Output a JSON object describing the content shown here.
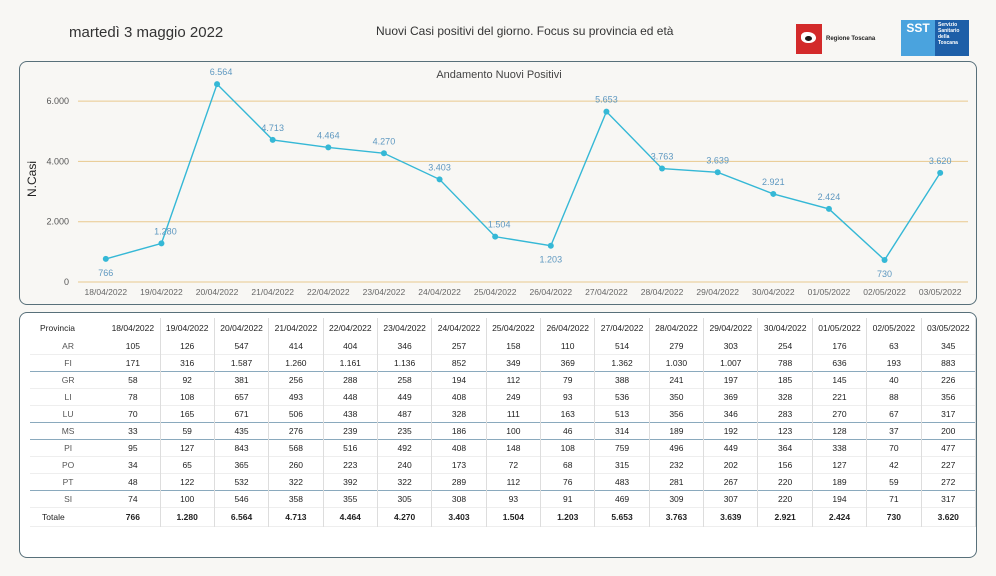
{
  "header": {
    "date": "martedì 3 maggio 2022",
    "subtitle": "Nuovi Casi positivi del giorno. Focus su provincia ed età",
    "logo_regione": "Regione Toscana",
    "logo_sst_short": "SST",
    "logo_sst_text": "Servizio Sanitario della Toscana"
  },
  "colors": {
    "line": "#35b8d6",
    "grid": "#e9c98e",
    "label": "#5e98c0"
  },
  "chart_data": {
    "type": "line",
    "title": "Andamento Nuovi Positivi",
    "ylabel": "N.Casi",
    "xlabel": "",
    "ylim": [
      0,
      6800
    ],
    "yticks": [
      0,
      2000,
      4000,
      6000
    ],
    "ytick_labels": [
      "0",
      "2.000",
      "4.000",
      "6.000"
    ],
    "categories": [
      "18/04/2022",
      "19/04/2022",
      "20/04/2022",
      "21/04/2022",
      "22/04/2022",
      "23/04/2022",
      "24/04/2022",
      "25/04/2022",
      "26/04/2022",
      "27/04/2022",
      "28/04/2022",
      "29/04/2022",
      "30/04/2022",
      "01/05/2022",
      "02/05/2022",
      "03/05/2022"
    ],
    "values": [
      766,
      1280,
      6564,
      4713,
      4464,
      4270,
      3403,
      1504,
      1203,
      5653,
      3763,
      3639,
      2921,
      2424,
      730,
      3620
    ],
    "value_labels": [
      "766",
      "1.280",
      "6.564",
      "4.713",
      "4.464",
      "4.270",
      "3.403",
      "1.504",
      "1.203",
      "5.653",
      "3.763",
      "3.639",
      "2.921",
      "2.424",
      "730",
      "3.620"
    ]
  },
  "table": {
    "header_label": "Provincia",
    "dates": [
      "18/04/2022",
      "19/04/2022",
      "20/04/2022",
      "21/04/2022",
      "22/04/2022",
      "23/04/2022",
      "24/04/2022",
      "25/04/2022",
      "26/04/2022",
      "27/04/2022",
      "28/04/2022",
      "29/04/2022",
      "30/04/2022",
      "01/05/2022",
      "02/05/2022",
      "03/05/2022"
    ],
    "rows": [
      {
        "prov": "AR",
        "vals": [
          "105",
          "126",
          "547",
          "414",
          "404",
          "346",
          "257",
          "158",
          "110",
          "514",
          "279",
          "303",
          "254",
          "176",
          "63",
          "345"
        ]
      },
      {
        "prov": "FI",
        "vals": [
          "171",
          "316",
          "1.587",
          "1.260",
          "1.161",
          "1.136",
          "852",
          "349",
          "369",
          "1.362",
          "1.030",
          "1.007",
          "788",
          "636",
          "193",
          "883"
        ]
      },
      {
        "prov": "GR",
        "vals": [
          "58",
          "92",
          "381",
          "256",
          "288",
          "258",
          "194",
          "112",
          "79",
          "388",
          "241",
          "197",
          "185",
          "145",
          "40",
          "226"
        ]
      },
      {
        "prov": "LI",
        "vals": [
          "78",
          "108",
          "657",
          "493",
          "448",
          "449",
          "408",
          "249",
          "93",
          "536",
          "350",
          "369",
          "328",
          "221",
          "88",
          "356"
        ]
      },
      {
        "prov": "LU",
        "vals": [
          "70",
          "165",
          "671",
          "506",
          "438",
          "487",
          "328",
          "111",
          "163",
          "513",
          "356",
          "346",
          "283",
          "270",
          "67",
          "317"
        ]
      },
      {
        "prov": "MS",
        "vals": [
          "33",
          "59",
          "435",
          "276",
          "239",
          "235",
          "186",
          "100",
          "46",
          "314",
          "189",
          "192",
          "123",
          "128",
          "37",
          "200"
        ]
      },
      {
        "prov": "PI",
        "vals": [
          "95",
          "127",
          "843",
          "568",
          "516",
          "492",
          "408",
          "148",
          "108",
          "759",
          "496",
          "449",
          "364",
          "338",
          "70",
          "477"
        ]
      },
      {
        "prov": "PO",
        "vals": [
          "34",
          "65",
          "365",
          "260",
          "223",
          "240",
          "173",
          "72",
          "68",
          "315",
          "232",
          "202",
          "156",
          "127",
          "42",
          "227"
        ]
      },
      {
        "prov": "PT",
        "vals": [
          "48",
          "122",
          "532",
          "322",
          "392",
          "322",
          "289",
          "112",
          "76",
          "483",
          "281",
          "267",
          "220",
          "189",
          "59",
          "272"
        ]
      },
      {
        "prov": "SI",
        "vals": [
          "74",
          "100",
          "546",
          "358",
          "355",
          "305",
          "308",
          "93",
          "91",
          "469",
          "309",
          "307",
          "220",
          "194",
          "71",
          "317"
        ]
      }
    ],
    "total": {
      "prov": "Totale",
      "vals": [
        "766",
        "1.280",
        "6.564",
        "4.713",
        "4.464",
        "4.270",
        "3.403",
        "1.504",
        "1.203",
        "5.653",
        "3.763",
        "3.639",
        "2.921",
        "2.424",
        "730",
        "3.620"
      ]
    }
  }
}
